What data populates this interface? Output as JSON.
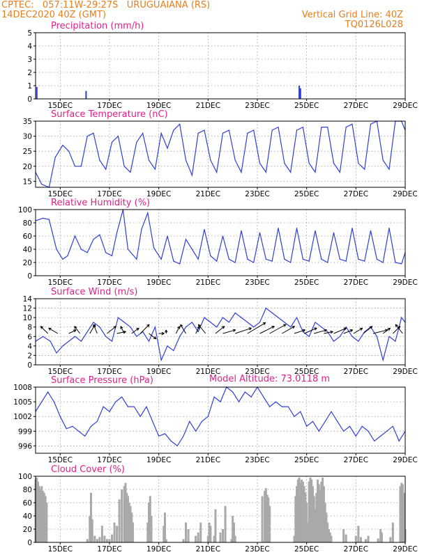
{
  "header": {
    "line1_left": "CPTEC:   057:11W-29:27S   URUGUAIANA (RS)",
    "line2_left": "14DEC2020 40Z (GMT)",
    "line1_right": "Vertical Grid Line: 40Z",
    "line2_right": "TQ0126L028"
  },
  "model_altitude": "Model Altitude: 73.0118 m",
  "colors": {
    "header": "#e87e1c",
    "panel_title": "#e0208a",
    "line": "#2f3fd6",
    "precip_bar": "#2f3fd6",
    "cloud_bar": "#a9a9a9",
    "wind_arrow": "#000000"
  },
  "x_axis": {
    "start": "14DEC2020 40Z",
    "end": "29DEC2020",
    "tick_labels": [
      "15DEC",
      "17DEC",
      "19DEC",
      "21DEC",
      "23DEC",
      "25DEC",
      "27DEC",
      "29DEC"
    ],
    "tick_days": [
      15,
      17,
      19,
      21,
      23,
      25,
      27,
      29
    ],
    "range_days": [
      14.0,
      29.0
    ]
  },
  "chart_data": [
    {
      "type": "bar",
      "title": "Precipitation (mm/h)",
      "ylim": [
        0,
        5
      ],
      "yticks": [
        0,
        1,
        2,
        3,
        4,
        5
      ],
      "grid": true,
      "x_days": [
        14.05,
        16.05,
        24.7,
        24.75
      ],
      "values": [
        0.9,
        0.6,
        1.0,
        0.8
      ]
    },
    {
      "type": "line",
      "title": "Surface Temperature (nC)",
      "ylim": [
        13,
        35
      ],
      "yticks": [
        15,
        20,
        25,
        30,
        35
      ],
      "grid": true,
      "x_days": [
        14.0,
        14.25,
        14.55,
        14.8,
        15.1,
        15.35,
        15.6,
        15.85,
        16.1,
        16.35,
        16.6,
        16.85,
        17.1,
        17.35,
        17.6,
        17.85,
        18.1,
        18.35,
        18.6,
        18.85,
        19.1,
        19.35,
        19.6,
        19.85,
        20.1,
        20.35,
        20.6,
        20.85,
        21.1,
        21.35,
        21.6,
        21.85,
        22.1,
        22.35,
        22.6,
        22.85,
        23.1,
        23.35,
        23.6,
        23.85,
        24.1,
        24.35,
        24.6,
        24.85,
        25.1,
        25.35,
        25.6,
        25.85,
        26.1,
        26.35,
        26.6,
        26.85,
        27.1,
        27.35,
        27.6,
        27.85,
        28.1,
        28.35,
        28.6,
        28.85,
        29.0
      ],
      "values": [
        18,
        14,
        13,
        23,
        27,
        25,
        20,
        20,
        30,
        31,
        22,
        19,
        28,
        30,
        20,
        18,
        28,
        31,
        22,
        19,
        31,
        26,
        32,
        34,
        22,
        17,
        31,
        32,
        22,
        18,
        31,
        32,
        22,
        18,
        31,
        32,
        21,
        18,
        32,
        33,
        21,
        18,
        32,
        33,
        21,
        18,
        33,
        33,
        21,
        18,
        33,
        34,
        21,
        19,
        34,
        35,
        22,
        19,
        35,
        35,
        32
      ]
    },
    {
      "type": "line",
      "title": "Relative Humidity (%)",
      "ylim": [
        0,
        100
      ],
      "yticks": [
        0,
        20,
        40,
        60,
        80,
        100
      ],
      "grid": true,
      "x_days": [
        14.0,
        14.3,
        14.55,
        14.85,
        15.1,
        15.3,
        15.6,
        15.85,
        16.1,
        16.35,
        16.6,
        16.85,
        17.1,
        17.3,
        17.55,
        17.75,
        18.1,
        18.3,
        18.55,
        18.8,
        19.1,
        19.35,
        19.6,
        19.85,
        20.1,
        20.35,
        20.6,
        20.85,
        21.1,
        21.35,
        21.6,
        21.85,
        22.1,
        22.35,
        22.6,
        22.85,
        23.1,
        23.35,
        23.6,
        23.85,
        24.1,
        24.35,
        24.6,
        24.85,
        25.1,
        25.35,
        25.6,
        25.85,
        26.1,
        26.35,
        26.6,
        26.85,
        27.1,
        27.35,
        27.6,
        27.85,
        28.1,
        28.35,
        28.6,
        28.85,
        29.0
      ],
      "values": [
        83,
        87,
        85,
        40,
        25,
        30,
        60,
        40,
        35,
        55,
        62,
        35,
        30,
        65,
        100,
        40,
        25,
        70,
        95,
        42,
        25,
        60,
        22,
        18,
        55,
        40,
        25,
        70,
        30,
        22,
        60,
        25,
        20,
        68,
        25,
        20,
        65,
        25,
        22,
        72,
        25,
        20,
        72,
        25,
        22,
        68,
        25,
        20,
        65,
        25,
        22,
        72,
        25,
        22,
        68,
        25,
        20,
        72,
        20,
        18,
        35
      ]
    },
    {
      "type": "line",
      "title": "Surface Wind (m/s)",
      "ylim": [
        0,
        14
      ],
      "yticks": [
        0,
        2,
        4,
        6,
        8,
        10,
        12,
        14
      ],
      "grid": true,
      "x_days": [
        14.0,
        14.3,
        14.6,
        14.85,
        15.1,
        15.35,
        15.6,
        15.85,
        16.1,
        16.35,
        16.6,
        16.85,
        17.1,
        17.35,
        17.6,
        17.85,
        18.1,
        18.35,
        18.6,
        18.85,
        19.1,
        19.35,
        19.6,
        19.85,
        20.1,
        20.35,
        20.6,
        20.85,
        21.1,
        21.35,
        21.6,
        21.85,
        22.1,
        22.35,
        22.6,
        22.85,
        23.1,
        23.35,
        23.6,
        23.85,
        24.1,
        24.35,
        24.6,
        24.85,
        25.1,
        25.35,
        25.6,
        25.85,
        26.1,
        26.35,
        26.6,
        26.85,
        27.1,
        27.35,
        27.6,
        27.85,
        28.1,
        28.35,
        28.6,
        28.85,
        29.0
      ],
      "values": [
        5,
        6,
        5,
        2.5,
        4,
        5,
        6,
        5,
        7,
        9,
        8,
        6,
        5,
        10,
        9,
        8,
        6,
        7,
        5,
        8,
        1,
        4,
        3,
        6,
        8,
        9,
        7,
        10,
        9,
        8,
        10,
        9,
        11,
        10,
        9,
        8,
        9,
        12,
        11,
        10,
        9,
        8,
        10,
        7,
        6,
        9,
        8,
        7,
        5,
        6,
        8,
        6,
        5,
        7,
        8,
        6,
        1,
        6,
        5,
        10,
        9
      ],
      "arrows": [
        {
          "day": 14.5,
          "u": -4,
          "v": 4
        },
        {
          "day": 14.9,
          "u": -5,
          "v": 3
        },
        {
          "day": 15.35,
          "u": 4,
          "v": 2
        },
        {
          "day": 15.8,
          "u": -3,
          "v": 4
        },
        {
          "day": 16.2,
          "u": 3,
          "v": 5
        },
        {
          "day": 16.5,
          "u": -2,
          "v": 5
        },
        {
          "day": 16.9,
          "u": 5,
          "v": 4
        },
        {
          "day": 17.3,
          "u": 5,
          "v": 1
        },
        {
          "day": 17.6,
          "u": -2,
          "v": 4
        },
        {
          "day": 17.9,
          "u": 4,
          "v": 3
        },
        {
          "day": 18.25,
          "u": 5,
          "v": 5
        },
        {
          "day": 18.6,
          "u": 4,
          "v": -3
        },
        {
          "day": 19.0,
          "u": 3,
          "v": 0
        },
        {
          "day": 19.3,
          "u": 0,
          "v": 2
        },
        {
          "day": 19.7,
          "u": 2,
          "v": 4
        },
        {
          "day": 20.1,
          "u": -3,
          "v": 5
        },
        {
          "day": 20.5,
          "u": 2,
          "v": 4
        },
        {
          "day": 20.9,
          "u": -4,
          "v": 5
        },
        {
          "day": 21.3,
          "u": 5,
          "v": 4
        },
        {
          "day": 21.6,
          "u": 7,
          "v": 2
        },
        {
          "day": 22.1,
          "u": 9,
          "v": 3
        },
        {
          "day": 22.6,
          "u": 10,
          "v": 6
        },
        {
          "day": 23.1,
          "u": 8,
          "v": 4
        },
        {
          "day": 23.5,
          "u": 9,
          "v": 5
        },
        {
          "day": 24.0,
          "u": 7,
          "v": 4
        },
        {
          "day": 24.5,
          "u": 6,
          "v": 2
        },
        {
          "day": 24.9,
          "u": 7,
          "v": 3
        },
        {
          "day": 25.3,
          "u": 7,
          "v": 2
        },
        {
          "day": 25.7,
          "u": 5,
          "v": 1
        },
        {
          "day": 26.1,
          "u": 7,
          "v": 3
        },
        {
          "day": 26.5,
          "u": 5,
          "v": 2
        },
        {
          "day": 26.9,
          "u": 5,
          "v": 3
        },
        {
          "day": 27.3,
          "u": 5,
          "v": 4
        },
        {
          "day": 27.7,
          "u": 8,
          "v": 2
        },
        {
          "day": 28.1,
          "u": 4,
          "v": 3
        },
        {
          "day": 28.5,
          "u": 4,
          "v": 4
        },
        {
          "day": 28.9,
          "u": -4,
          "v": 5
        }
      ]
    },
    {
      "type": "line",
      "title": "Surface Pressure (hPa)",
      "ylim": [
        994.5,
        1008
      ],
      "yticks": [
        996,
        999,
        1002,
        1005,
        1008
      ],
      "grid": true,
      "x_days": [
        14.0,
        14.25,
        14.5,
        14.75,
        15.0,
        15.25,
        15.5,
        15.75,
        16.0,
        16.25,
        16.5,
        16.75,
        17.0,
        17.25,
        17.5,
        17.75,
        18.0,
        18.25,
        18.5,
        18.75,
        19.0,
        19.25,
        19.5,
        19.75,
        20.0,
        20.25,
        20.5,
        20.75,
        21.0,
        21.25,
        21.5,
        21.75,
        22.0,
        22.25,
        22.5,
        22.75,
        23.0,
        23.25,
        23.5,
        23.75,
        24.0,
        24.25,
        24.5,
        24.75,
        25.0,
        25.25,
        25.5,
        25.75,
        26.0,
        26.25,
        26.5,
        26.75,
        27.0,
        27.25,
        27.5,
        27.75,
        28.0,
        28.25,
        28.5,
        28.75,
        29.0
      ],
      "values": [
        1003,
        1005,
        1007,
        1005,
        1002,
        999.5,
        1000,
        999,
        998,
        1000,
        1001,
        1004,
        1003,
        1005,
        1006,
        1004,
        1004,
        1002,
        1004,
        1001,
        998,
        998.5,
        997,
        996,
        998,
        1001,
        999,
        1001,
        1002,
        1006,
        1005,
        1008,
        1007,
        1005,
        1007,
        1006,
        1008,
        1006,
        1004,
        1005,
        1004,
        1004,
        1002,
        1003,
        1000,
        1001,
        999,
        1001,
        1003,
        1001,
        999,
        1000,
        998,
        1000,
        999,
        997,
        998,
        999,
        1000,
        997,
        999
      ]
    },
    {
      "type": "bar",
      "title": "Cloud Cover (%)",
      "ylim": [
        0,
        100
      ],
      "yticks": [
        0,
        20,
        40,
        60,
        80,
        100
      ],
      "grid": true,
      "x_days": [
        14.0,
        14.05,
        14.1,
        14.15,
        14.2,
        14.25,
        14.3,
        14.35,
        14.4,
        14.45,
        16.1,
        16.2,
        16.25,
        16.3,
        16.4,
        16.5,
        16.6,
        16.7,
        16.8,
        16.9,
        17.0,
        17.1,
        17.2,
        17.3,
        17.4,
        17.5,
        17.6,
        17.65,
        17.7,
        17.75,
        17.8,
        17.85,
        17.9,
        17.95,
        18.55,
        18.6,
        18.65,
        18.7,
        19.2,
        19.25,
        19.3,
        20.0,
        20.1,
        20.2,
        20.5,
        20.6,
        20.7,
        21.0,
        21.05,
        21.1,
        21.25,
        21.3,
        21.5,
        21.6,
        21.7,
        21.95,
        22.0,
        22.05,
        22.1,
        23.2,
        23.3,
        23.35,
        23.4,
        23.45,
        23.5,
        24.5,
        24.55,
        24.6,
        24.65,
        24.7,
        24.75,
        24.8,
        24.85,
        24.9,
        24.95,
        25.0,
        25.05,
        25.1,
        25.15,
        25.2,
        25.25,
        25.3,
        25.35,
        25.4,
        25.45,
        25.5,
        25.55,
        25.6,
        25.65,
        25.7,
        25.75,
        25.8,
        25.85,
        25.9,
        25.95,
        26.0,
        26.5,
        26.6,
        27.0,
        27.1,
        27.2,
        27.4,
        27.5,
        27.9,
        28.0,
        28.05,
        28.4,
        28.5,
        28.8,
        28.85,
        28.9,
        28.95,
        29.0
      ],
      "values": [
        95,
        98,
        92,
        85,
        80,
        85,
        78,
        75,
        70,
        60,
        5,
        40,
        75,
        35,
        10,
        5,
        8,
        25,
        10,
        5,
        5,
        12,
        30,
        25,
        65,
        80,
        85,
        90,
        75,
        70,
        60,
        55,
        45,
        30,
        30,
        60,
        70,
        40,
        25,
        45,
        5,
        5,
        30,
        20,
        10,
        15,
        30,
        10,
        30,
        25,
        10,
        50,
        15,
        20,
        55,
        5,
        40,
        30,
        10,
        70,
        78,
        82,
        72,
        68,
        55,
        10,
        70,
        85,
        95,
        98,
        90,
        95,
        92,
        85,
        75,
        60,
        30,
        92,
        98,
        95,
        85,
        70,
        50,
        75,
        95,
        88,
        80,
        92,
        98,
        85,
        60,
        45,
        30,
        20,
        15,
        10,
        20,
        12,
        10,
        25,
        8,
        5,
        10,
        6,
        20,
        15,
        8,
        30,
        85,
        90,
        88,
        75,
        20
      ]
    }
  ]
}
